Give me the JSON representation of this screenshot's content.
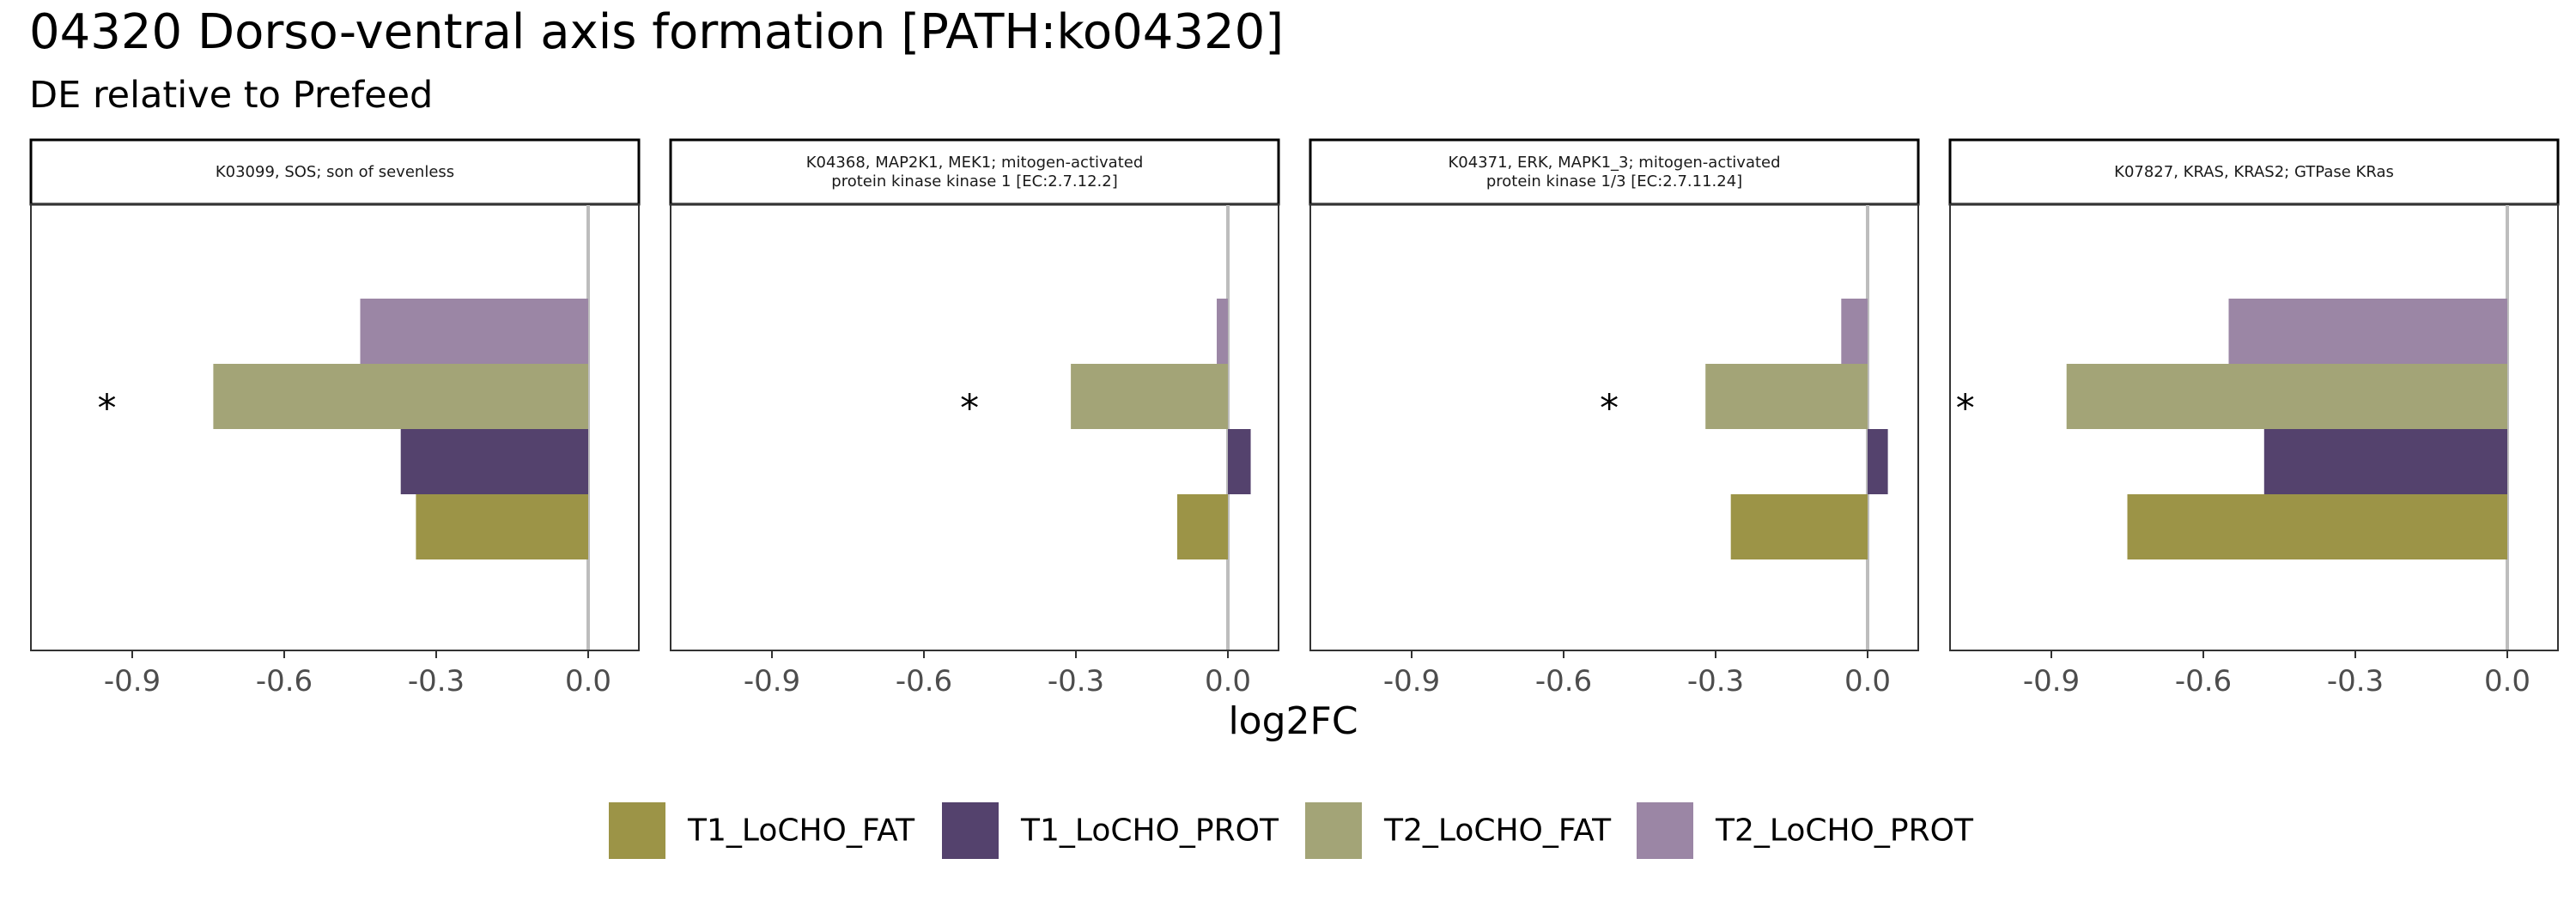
{
  "chart_data": {
    "type": "bar",
    "orientation": "horizontal",
    "title": "04320 Dorso-ventral axis formation [PATH:ko04320]",
    "subtitle": "DE relative to Prefeed",
    "xlabel": "log2FC",
    "ylabel": "",
    "xlim": [
      -1.1,
      0.1
    ],
    "x_ticks": [
      -0.9,
      -0.6,
      -0.3,
      0.0
    ],
    "x_tick_labels": [
      "-0.9",
      "-0.6",
      "-0.3",
      "0.0"
    ],
    "grid": false,
    "legend_position": "bottom",
    "significance_marker": "*",
    "series": [
      {
        "name": "T1_LoCHO_FAT",
        "color": "#9c9447"
      },
      {
        "name": "T1_LoCHO_PROT",
        "color": "#54426d"
      },
      {
        "name": "T2_LoCHO_FAT",
        "color": "#a3a477"
      },
      {
        "name": "T2_LoCHO_PROT",
        "color": "#9b86a5"
      }
    ],
    "panels": [
      {
        "strip_lines": [
          "K03099, SOS; son of sevenless"
        ],
        "values": {
          "T1_LoCHO_FAT": -0.34,
          "T1_LoCHO_PROT": -0.37,
          "T2_LoCHO_FAT": -0.74,
          "T2_LoCHO_PROT": -0.45
        },
        "significant_at_x": -0.95
      },
      {
        "strip_lines": [
          "K04368, MAP2K1, MEK1; mitogen-activated",
          "protein kinase kinase 1 [EC:2.7.12.2]"
        ],
        "values": {
          "T1_LoCHO_FAT": -0.1,
          "T1_LoCHO_PROT": 0.045,
          "T2_LoCHO_FAT": -0.31,
          "T2_LoCHO_PROT": -0.022
        },
        "significant_at_x": -0.51
      },
      {
        "strip_lines": [
          "K04371, ERK, MAPK1_3; mitogen-activated",
          "protein kinase 1/3 [EC:2.7.11.24]"
        ],
        "values": {
          "T1_LoCHO_FAT": -0.27,
          "T1_LoCHO_PROT": 0.04,
          "T2_LoCHO_FAT": -0.32,
          "T2_LoCHO_PROT": -0.052
        },
        "significant_at_x": -0.51
      },
      {
        "strip_lines": [
          "K07827, KRAS, KRAS2; GTPase KRas"
        ],
        "values": {
          "T1_LoCHO_FAT": -0.75,
          "T1_LoCHO_PROT": -0.48,
          "T2_LoCHO_FAT": -0.87,
          "T2_LoCHO_PROT": -0.55
        },
        "significant_at_x": -1.07
      }
    ]
  }
}
